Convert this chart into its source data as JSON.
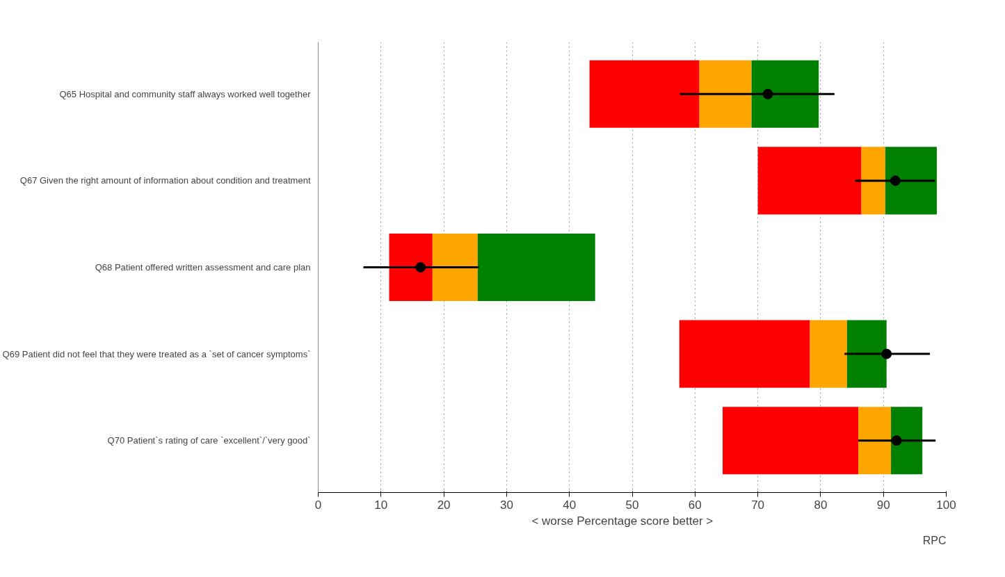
{
  "chart_data": {
    "type": "bar",
    "orientation": "horizontal",
    "xlabel": "< worse    Percentage score    better >",
    "categories": [
      "Q65 Hospital and community staff always worked well together",
      "Q67 Given the right amount of information about condition and treatment",
      "Q68 Patient offered written assessment and care plan",
      "Q69 Patient did not feel that they were treated as a `set of cancer symptoms`",
      "Q70 Patient`s rating of care `excellent`/`very good`"
    ],
    "series": [
      {
        "color": "#ff0000",
        "base": [
          43.2,
          70.0,
          11.3,
          57.5,
          64.4
        ],
        "values": [
          17.5,
          16.5,
          6.9,
          20.8,
          21.6
        ]
      },
      {
        "color": "#ffa500",
        "base": [
          60.7,
          86.5,
          18.2,
          78.3,
          86.0
        ],
        "values": [
          8.3,
          3.8,
          7.2,
          5.9,
          5.2
        ]
      },
      {
        "color": "#008000",
        "base": [
          69.0,
          90.3,
          25.4,
          84.2,
          91.2
        ],
        "values": [
          10.7,
          8.2,
          18.7,
          6.3,
          5.0
        ]
      },
      {
        "type": "scatter",
        "color": "#000000",
        "marker": "circle",
        "values": [
          71.6,
          91.9,
          16.3,
          90.5,
          92.1
        ],
        "errors": [
          [
            57.6,
            82.2
          ],
          [
            85.5,
            98.2
          ],
          [
            7.2,
            25.6
          ],
          [
            83.8,
            97.4
          ],
          [
            86.0,
            98.3
          ]
        ]
      }
    ],
    "xlim": [
      0,
      100
    ],
    "xticks": [
      0,
      10,
      20,
      30,
      40,
      50,
      60,
      70,
      80,
      90,
      100
    ],
    "grid": "x",
    "annotations": [
      "RPC"
    ]
  }
}
